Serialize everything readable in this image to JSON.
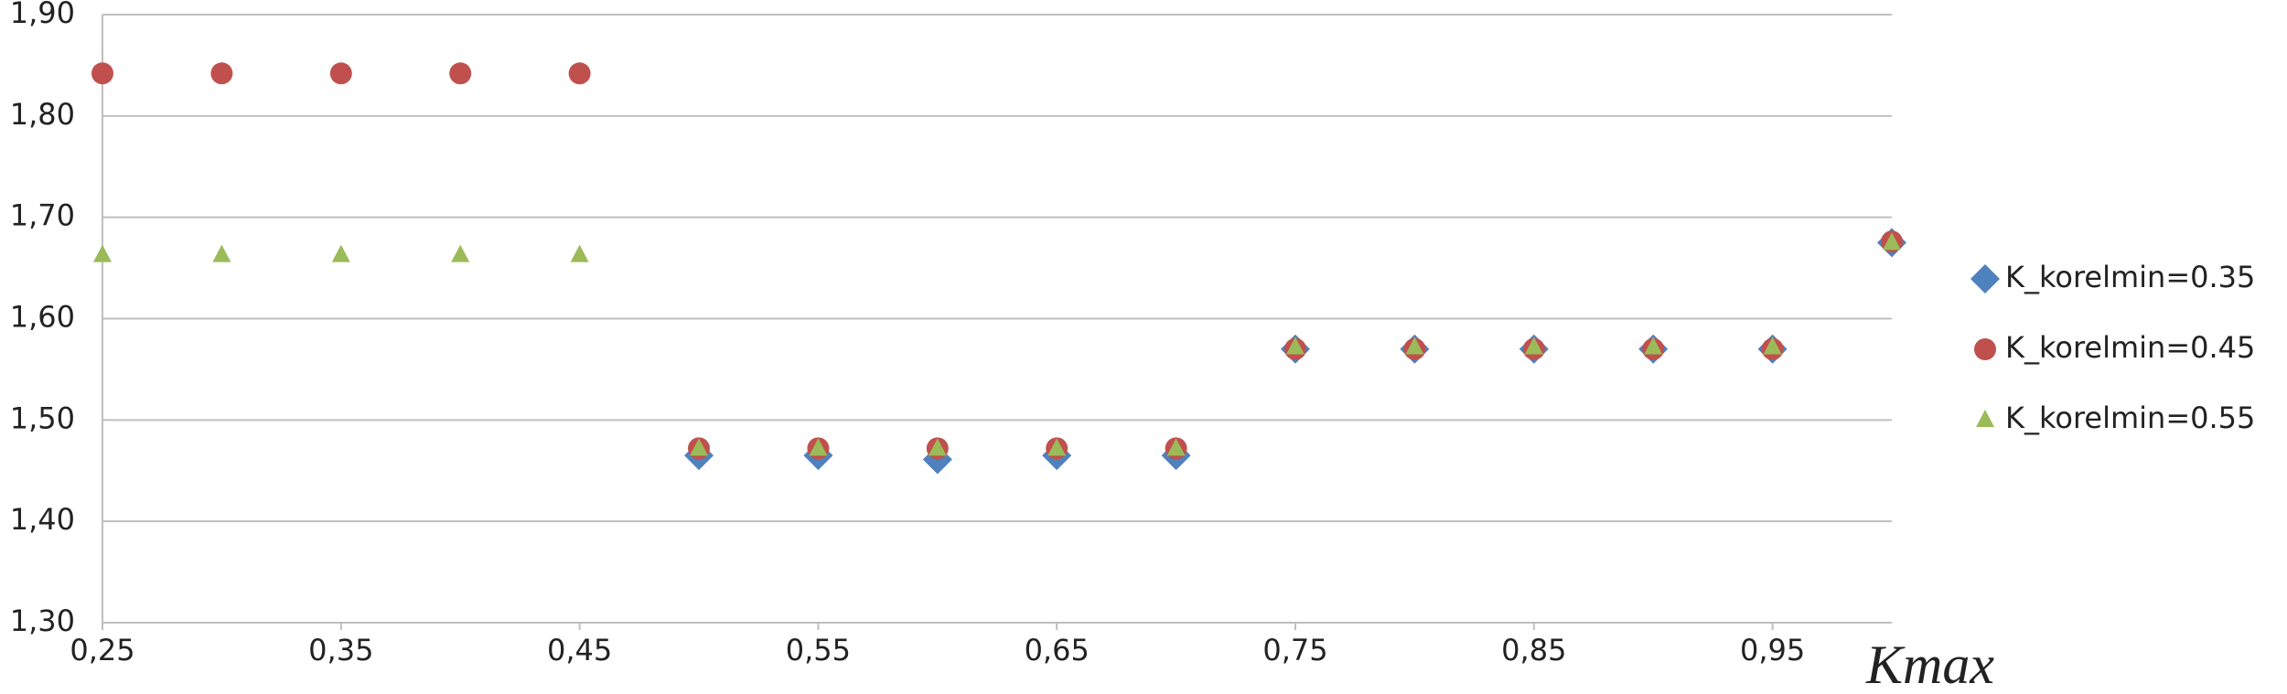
{
  "chart_data": {
    "type": "scatter",
    "x_label": "Kmax",
    "x": [
      0.25,
      0.3,
      0.35,
      0.4,
      0.45,
      0.5,
      0.55,
      0.6,
      0.65,
      0.7,
      0.75,
      0.8,
      0.85,
      0.9,
      0.95,
      1.0
    ],
    "series": [
      {
        "name": "K_korelmin=0.35",
        "color": "#4f81bd",
        "marker": "diamond",
        "values": [
          null,
          null,
          null,
          null,
          null,
          1.465,
          1.465,
          1.461,
          1.465,
          1.465,
          1.57,
          1.57,
          1.57,
          1.57,
          1.57,
          1.675
        ]
      },
      {
        "name": "K_korelmin=0.45",
        "color": "#c0504d",
        "marker": "circle",
        "values": [
          1.842,
          1.842,
          1.842,
          1.842,
          1.842,
          1.472,
          1.472,
          1.472,
          1.472,
          1.472,
          1.57,
          1.57,
          1.57,
          1.57,
          1.57,
          1.676
        ]
      },
      {
        "name": "K_korelmin=0.55",
        "color": "#9bbb59",
        "marker": "triangle",
        "values": [
          1.663,
          1.663,
          1.663,
          1.663,
          1.663,
          1.472,
          1.472,
          1.472,
          1.472,
          1.472,
          1.572,
          1.572,
          1.572,
          1.572,
          1.572,
          1.675
        ]
      }
    ],
    "xlim": [
      0.25,
      1.0
    ],
    "xticks": [
      {
        "value": 0.25,
        "label": "0,25"
      },
      {
        "value": 0.35,
        "label": "0,35"
      },
      {
        "value": 0.45,
        "label": "0,45"
      },
      {
        "value": 0.55,
        "label": "0,55"
      },
      {
        "value": 0.65,
        "label": "0,65"
      },
      {
        "value": 0.75,
        "label": "0,75"
      },
      {
        "value": 0.85,
        "label": "0,85"
      },
      {
        "value": 0.95,
        "label": "0,95"
      }
    ],
    "ylim": [
      1.3,
      1.9
    ],
    "yticks": [
      {
        "value": 1.3,
        "label": "1,30"
      },
      {
        "value": 1.4,
        "label": "1,40"
      },
      {
        "value": 1.5,
        "label": "1,50"
      },
      {
        "value": 1.6,
        "label": "1,60"
      },
      {
        "value": 1.7,
        "label": "1,70"
      },
      {
        "value": 1.8,
        "label": "1,80"
      },
      {
        "value": 1.9,
        "label": "1,90"
      }
    ],
    "grid": true,
    "legend": "right"
  }
}
